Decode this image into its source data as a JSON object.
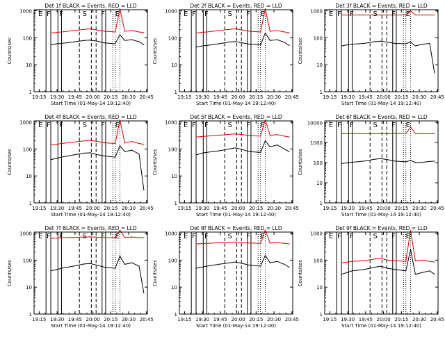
{
  "colors": {
    "events": "#000000",
    "lld": "#dd0000",
    "background": "#ffffff",
    "axes": "#000000"
  },
  "chart_data": [
    {
      "type": "line",
      "title": "Det 1f BLACK = Events, RED = LLD",
      "xlabel": "Start Time (01-May-14 19:12:40)",
      "ylabel": "Counts/sec",
      "xticks": [
        "19:15",
        "19:30",
        "19:45",
        "20:00",
        "20:15",
        "20:30",
        "20:45"
      ],
      "yticks": [
        "1",
        "10",
        "100",
        "1000"
      ],
      "ylim": [
        1,
        1100
      ],
      "log_y": true,
      "x_minutes": [
        0,
        12,
        17,
        21,
        31,
        40,
        45,
        51,
        57,
        66,
        70,
        74,
        80,
        86,
        90
      ],
      "series": [
        {
          "name": "Events",
          "color": "#000000",
          "y": [
            null,
            55,
            60,
            62,
            70,
            80,
            82,
            75,
            65,
            60,
            130,
            80,
            85,
            72,
            55
          ]
        },
        {
          "name": "LLD",
          "color": "#dd0000",
          "y": [
            null,
            150,
            160,
            165,
            185,
            205,
            215,
            195,
            175,
            165,
            1200,
            175,
            185,
            165,
            155
          ]
        }
      ],
      "markers": [
        {
          "label": "E",
          "x": 1.5
        },
        {
          "label": "F",
          "x": 8.5
        },
        {
          "label": "F",
          "x": 19
        },
        {
          "label": "S",
          "x": 38.5
        },
        {
          "label": "F",
          "x": 54
        },
        {
          "label": "E",
          "x": 66
        }
      ],
      "vlines": {
        "solid": [
          8,
          12,
          18,
          21,
          55,
          58
        ],
        "dashed": [
          36,
          46,
          50
        ],
        "dotted": [
          64,
          66,
          70
        ]
      }
    },
    {
      "type": "line",
      "title": "Det 2f BLACK = Events, RED = LLD",
      "xlabel": "Start Time (01-May-14 19:12:40)",
      "ylabel": "Counts/sec",
      "xticks": [
        "19:15",
        "19:30",
        "19:45",
        "20:00",
        "20:15",
        "20:30",
        "20:45"
      ],
      "yticks": [
        "1",
        "10",
        "100",
        "1000"
      ],
      "ylim": [
        1,
        1100
      ],
      "log_y": true,
      "x_minutes": [
        0,
        12,
        17,
        21,
        31,
        40,
        45,
        51,
        57,
        66,
        70,
        74,
        80,
        86,
        90
      ],
      "series": [
        {
          "name": "Events",
          "color": "#000000",
          "y": [
            null,
            45,
            50,
            52,
            60,
            70,
            72,
            65,
            58,
            55,
            150,
            80,
            85,
            68,
            52
          ]
        },
        {
          "name": "LLD",
          "color": "#dd0000",
          "y": [
            null,
            150,
            160,
            165,
            185,
            205,
            215,
            195,
            175,
            165,
            1200,
            175,
            185,
            165,
            155
          ]
        }
      ],
      "markers": [
        {
          "label": "E",
          "x": 1.5
        },
        {
          "label": "F",
          "x": 8.5
        },
        {
          "label": "F",
          "x": 19
        },
        {
          "label": "S",
          "x": 38.5
        },
        {
          "label": "F",
          "x": 54
        },
        {
          "label": "E",
          "x": 66
        }
      ],
      "vlines": {
        "solid": [
          8,
          12,
          18,
          21,
          55,
          58
        ],
        "dashed": [
          36,
          46,
          50
        ],
        "dotted": [
          64,
          66,
          70
        ]
      }
    },
    {
      "type": "line",
      "title": "Det 3f BLACK = Events, RED = LLD",
      "xlabel": "Start Time (01-May-14 19:12:40)",
      "ylabel": "Counts/sec",
      "xticks": [
        "19:15",
        "19:30",
        "19:45",
        "20:00",
        "20:15",
        "20:30",
        "20:45"
      ],
      "yticks": [
        "1",
        "10",
        "100",
        "1000"
      ],
      "ylim": [
        1,
        1100
      ],
      "log_y": true,
      "x_minutes": [
        0,
        12,
        17,
        21,
        31,
        40,
        45,
        51,
        57,
        66,
        70,
        74,
        80,
        86,
        90
      ],
      "series": [
        {
          "name": "Events",
          "color": "#000000",
          "y": [
            null,
            50,
            55,
            58,
            62,
            72,
            75,
            68,
            62,
            60,
            70,
            50,
            58,
            62,
            5
          ]
        },
        {
          "name": "LLD",
          "color": "#dd0000",
          "y": [
            null,
            700,
            700,
            700,
            700,
            700,
            700,
            700,
            700,
            700,
            1000,
            700,
            700,
            700,
            700
          ]
        }
      ],
      "markers": [
        {
          "label": "E",
          "x": 1.5
        },
        {
          "label": "F",
          "x": 8.5
        },
        {
          "label": "F",
          "x": 19
        },
        {
          "label": "S",
          "x": 38.5
        },
        {
          "label": "F",
          "x": 54
        },
        {
          "label": "E",
          "x": 66
        }
      ],
      "vlines": {
        "solid": [
          8,
          12,
          18,
          21,
          55,
          58
        ],
        "dashed": [
          36,
          46,
          50
        ],
        "dotted": [
          64,
          66,
          70
        ]
      }
    },
    {
      "type": "line",
      "title": "Det 4f BLACK = Events, RED = LLD",
      "xlabel": "Start Time (01-May-14 19:12:40)",
      "ylabel": "Counts/sec",
      "xticks": [
        "19:15",
        "19:30",
        "19:45",
        "20:00",
        "20:15",
        "20:30",
        "20:45"
      ],
      "yticks": [
        "1",
        "10",
        "100",
        "1000"
      ],
      "ylim": [
        1,
        1100
      ],
      "log_y": true,
      "x_minutes": [
        0,
        12,
        17,
        21,
        31,
        40,
        45,
        51,
        57,
        66,
        70,
        74,
        80,
        86,
        90
      ],
      "series": [
        {
          "name": "Events",
          "color": "#000000",
          "y": [
            null,
            40,
            45,
            50,
            60,
            70,
            72,
            62,
            55,
            50,
            130,
            80,
            90,
            65,
            3
          ]
        },
        {
          "name": "LLD",
          "color": "#dd0000",
          "y": [
            null,
            140,
            150,
            160,
            180,
            200,
            210,
            190,
            170,
            160,
            1200,
            170,
            190,
            160,
            150
          ]
        }
      ],
      "markers": [
        {
          "label": "E",
          "x": 1.5
        },
        {
          "label": "F",
          "x": 8.5
        },
        {
          "label": "F",
          "x": 19
        },
        {
          "label": "S",
          "x": 38.5
        },
        {
          "label": "F",
          "x": 54
        },
        {
          "label": "E",
          "x": 66
        }
      ],
      "vlines": {
        "solid": [
          8,
          12,
          18,
          21,
          55,
          58
        ],
        "dashed": [
          36,
          46,
          50
        ],
        "dotted": [
          64,
          66,
          70
        ]
      }
    },
    {
      "type": "line",
      "title": "Det 5f BLACK = Events, RED = LLD",
      "xlabel": "Start Time (01-May-14 19:12:40)",
      "ylabel": "Counts/sec",
      "xticks": [
        "19:15",
        "19:30",
        "19:45",
        "20:00",
        "20:15",
        "20:30",
        "20:45"
      ],
      "yticks": [
        "1",
        "10",
        "100",
        "1000"
      ],
      "ylim": [
        1,
        1100
      ],
      "log_y": true,
      "x_minutes": [
        0,
        12,
        17,
        21,
        31,
        40,
        45,
        51,
        57,
        66,
        70,
        74,
        80,
        86,
        90
      ],
      "series": [
        {
          "name": "Events",
          "color": "#000000",
          "y": [
            null,
            60,
            70,
            75,
            85,
            100,
            110,
            95,
            80,
            75,
            200,
            120,
            140,
            100,
            80
          ]
        },
        {
          "name": "LLD",
          "color": "#dd0000",
          "y": [
            null,
            280,
            290,
            300,
            320,
            350,
            360,
            340,
            310,
            300,
            1200,
            320,
            340,
            300,
            280
          ]
        }
      ],
      "markers": [
        {
          "label": "E",
          "x": 1.5
        },
        {
          "label": "F",
          "x": 8.5
        },
        {
          "label": "F",
          "x": 19
        },
        {
          "label": "S",
          "x": 38.5
        },
        {
          "label": "F",
          "x": 54
        },
        {
          "label": "E",
          "x": 66
        }
      ],
      "vlines": {
        "solid": [
          8,
          12,
          18,
          21,
          55,
          58
        ],
        "dashed": [
          36,
          46,
          50
        ],
        "dotted": [
          64,
          66,
          70
        ]
      }
    },
    {
      "type": "line",
      "title": "Det 6f BLACK = Events, RED = LLD",
      "xlabel": "Start Time (01-May-14 19:12:40)",
      "ylabel": "Counts/sec",
      "xticks": [
        "19:15",
        "19:30",
        "19:45",
        "20:00",
        "20:15",
        "20:30",
        "20:45"
      ],
      "yticks": [
        "1",
        "10",
        "100",
        "1000",
        "10000"
      ],
      "ylim": [
        1,
        12000
      ],
      "log_y": true,
      "x_minutes": [
        0,
        12,
        17,
        21,
        31,
        40,
        45,
        51,
        57,
        66,
        70,
        74,
        80,
        86,
        90
      ],
      "series": [
        {
          "name": "Events",
          "color": "#000000",
          "y": [
            null,
            90,
            100,
            105,
            120,
            150,
            160,
            140,
            120,
            110,
            130,
            100,
            105,
            115,
            120
          ]
        },
        {
          "name": "LLD",
          "color": "#dd0000",
          "y": [
            null,
            2800,
            2800,
            2800,
            2800,
            2800,
            2800,
            2800,
            2800,
            2800,
            6000,
            2800,
            2800,
            2800,
            2800
          ]
        }
      ],
      "markers": [
        {
          "label": "E",
          "x": 1.5
        },
        {
          "label": "F",
          "x": 8.5
        },
        {
          "label": "F",
          "x": 19
        },
        {
          "label": "S",
          "x": 38.5
        },
        {
          "label": "F",
          "x": 54
        },
        {
          "label": "E",
          "x": 66
        }
      ],
      "vlines": {
        "solid": [
          8,
          12,
          18,
          21,
          55,
          58
        ],
        "dashed": [
          36,
          46,
          50
        ],
        "dotted": [
          64,
          66,
          70
        ]
      }
    },
    {
      "type": "line",
      "title": "Det 7f BLACK = Events, RED = LLD",
      "xlabel": "Start Time (01-May-14 19:12:40)",
      "ylabel": "Counts/sec",
      "xticks": [
        "19:15",
        "19:30",
        "19:45",
        "20:00",
        "20:15",
        "20:30",
        "20:45"
      ],
      "yticks": [
        "1",
        "10",
        "100",
        "1000"
      ],
      "ylim": [
        1,
        1100
      ],
      "log_y": true,
      "x_minutes": [
        0,
        12,
        17,
        21,
        31,
        40,
        45,
        51,
        57,
        66,
        70,
        74,
        80,
        86,
        90
      ],
      "series": [
        {
          "name": "Events",
          "color": "#000000",
          "y": [
            null,
            40,
            45,
            50,
            60,
            72,
            75,
            65,
            55,
            50,
            140,
            70,
            80,
            60,
            6
          ]
        },
        {
          "name": "LLD",
          "color": "#dd0000",
          "y": [
            null,
            650,
            660,
            680,
            700,
            720,
            730,
            710,
            690,
            680,
            1300,
            700,
            720,
            690,
            680
          ]
        }
      ],
      "markers": [
        {
          "label": "E",
          "x": 1.5
        },
        {
          "label": "F",
          "x": 8.5
        },
        {
          "label": "F",
          "x": 19
        },
        {
          "label": "S",
          "x": 38.5
        },
        {
          "label": "F",
          "x": 54
        },
        {
          "label": "E",
          "x": 66
        }
      ],
      "vlines": {
        "solid": [
          8,
          12,
          18,
          21,
          55,
          58
        ],
        "dashed": [
          36,
          46,
          50
        ],
        "dotted": [
          64,
          66,
          70
        ]
      }
    },
    {
      "type": "line",
      "title": "Det 8f BLACK = Events, RED = LLD",
      "xlabel": "Start Time (01-May-14 19:12:40)",
      "ylabel": "Counts/sec",
      "xticks": [
        "19:15",
        "19:30",
        "19:45",
        "20:00",
        "20:15",
        "20:30",
        "20:45"
      ],
      "yticks": [
        "1",
        "10",
        "100",
        "1000"
      ],
      "ylim": [
        1,
        1100
      ],
      "log_y": true,
      "x_minutes": [
        0,
        12,
        17,
        21,
        31,
        40,
        45,
        51,
        57,
        66,
        70,
        74,
        80,
        86,
        90
      ],
      "series": [
        {
          "name": "Events",
          "color": "#000000",
          "y": [
            null,
            50,
            55,
            60,
            70,
            80,
            85,
            75,
            65,
            60,
            150,
            80,
            90,
            70,
            55
          ]
        },
        {
          "name": "LLD",
          "color": "#dd0000",
          "y": [
            null,
            400,
            410,
            420,
            440,
            460,
            470,
            450,
            430,
            420,
            1300,
            430,
            450,
            420,
            400
          ]
        }
      ],
      "markers": [
        {
          "label": "E",
          "x": 1.5
        },
        {
          "label": "F",
          "x": 8.5
        },
        {
          "label": "F",
          "x": 19
        },
        {
          "label": "S",
          "x": 38.5
        },
        {
          "label": "F",
          "x": 54
        },
        {
          "label": "E",
          "x": 66
        }
      ],
      "vlines": {
        "solid": [
          8,
          12,
          18,
          21,
          55,
          58
        ],
        "dashed": [
          36,
          46,
          50
        ],
        "dotted": [
          64,
          66,
          70
        ]
      }
    },
    {
      "type": "line",
      "title": "Det 9f BLACK = Events, RED = LLD",
      "xlabel": "Start Time (01-May-14 19:12:40)",
      "ylabel": "Counts/sec",
      "xticks": [
        "19:15",
        "19:30",
        "19:45",
        "20:00",
        "20:15",
        "20:30",
        "20:45"
      ],
      "yticks": [
        "1",
        "10",
        "100",
        "1000"
      ],
      "ylim": [
        1,
        1100
      ],
      "log_y": true,
      "x_minutes": [
        0,
        12,
        17,
        21,
        31,
        40,
        45,
        51,
        57,
        66,
        70,
        74,
        80,
        86,
        90
      ],
      "series": [
        {
          "name": "Events",
          "color": "#000000",
          "y": [
            null,
            30,
            35,
            40,
            45,
            55,
            60,
            50,
            45,
            40,
            250,
            30,
            35,
            40,
            30
          ]
        },
        {
          "name": "LLD",
          "color": "#dd0000",
          "y": [
            null,
            80,
            85,
            90,
            95,
            110,
            115,
            100,
            95,
            90,
            1300,
            95,
            100,
            90,
            85
          ]
        }
      ],
      "markers": [
        {
          "label": "E",
          "x": 1.5
        },
        {
          "label": "F",
          "x": 8.5
        },
        {
          "label": "F",
          "x": 19
        },
        {
          "label": "S",
          "x": 38.5
        },
        {
          "label": "F",
          "x": 54
        },
        {
          "label": "E",
          "x": 66
        }
      ],
      "vlines": {
        "solid": [
          8,
          12,
          18,
          21,
          55,
          58
        ],
        "dashed": [
          36,
          46,
          50
        ],
        "dotted": [
          64,
          66,
          70
        ]
      }
    }
  ]
}
